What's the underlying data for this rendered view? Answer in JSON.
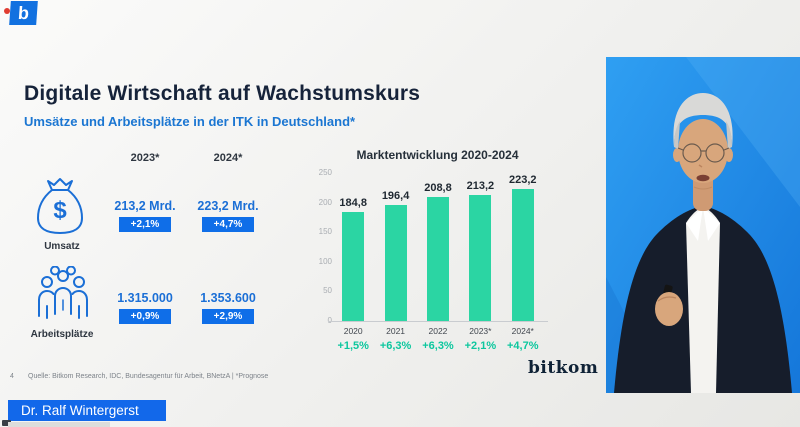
{
  "overlay": {
    "logo_letter": "b",
    "speaker_banner": "Dr. Ralf Wintergerst"
  },
  "slide": {
    "title": "Digitale Wirtschaft auf Wachstumskurs",
    "subtitle": "Umsätze und Arbeitsplätze in der ITK in Deutschland*",
    "stats": {
      "col_headers": [
        "2023*",
        "2024*"
      ],
      "rows": [
        {
          "icon": "money-bag-icon",
          "label": "Umsatz",
          "values": [
            "213,2 Mrd.",
            "223,2 Mrd."
          ],
          "badges": [
            "+2,1%",
            "+4,7%"
          ]
        },
        {
          "icon": "people-group-icon",
          "label": "Arbeitsplätze",
          "values": [
            "1.315.000",
            "1.353.600"
          ],
          "badges": [
            "+0,9%",
            "+2,9%"
          ]
        }
      ]
    },
    "footer": {
      "page_number": "4",
      "source": "Quelle: Bitkom Research, IDC, Bundesagentur für Arbeit, BNetzA | *Prognose"
    },
    "brand": "bitkom"
  },
  "chart_data": {
    "type": "bar",
    "title": "Marktentwicklung 2020-2024",
    "categories": [
      "2020",
      "2021",
      "2022",
      "2023*",
      "2024*"
    ],
    "values": [
      184.8,
      196.4,
      208.8,
      213.2,
      223.2
    ],
    "value_labels": [
      "184,8",
      "196,4",
      "208,8",
      "213,2",
      "223,2"
    ],
    "growth_labels": [
      "+1,5%",
      "+6,3%",
      "+6,3%",
      "+2,1%",
      "+4,7%"
    ],
    "y_ticks": [
      "250",
      "200",
      "150",
      "100",
      "50",
      "0"
    ],
    "ylim": [
      0,
      250
    ],
    "xlabel": "",
    "ylabel": "",
    "grid": false,
    "legend": false,
    "bar_color": "#2bd5a3",
    "growth_color": "#0cc79e"
  },
  "colors": {
    "accent_blue": "#0f6ee8",
    "value_blue": "#1b6fd6",
    "banner_blue": "#1268ea",
    "video_bg_blue": "#2196f0",
    "bar_green": "#2bd5a3"
  }
}
